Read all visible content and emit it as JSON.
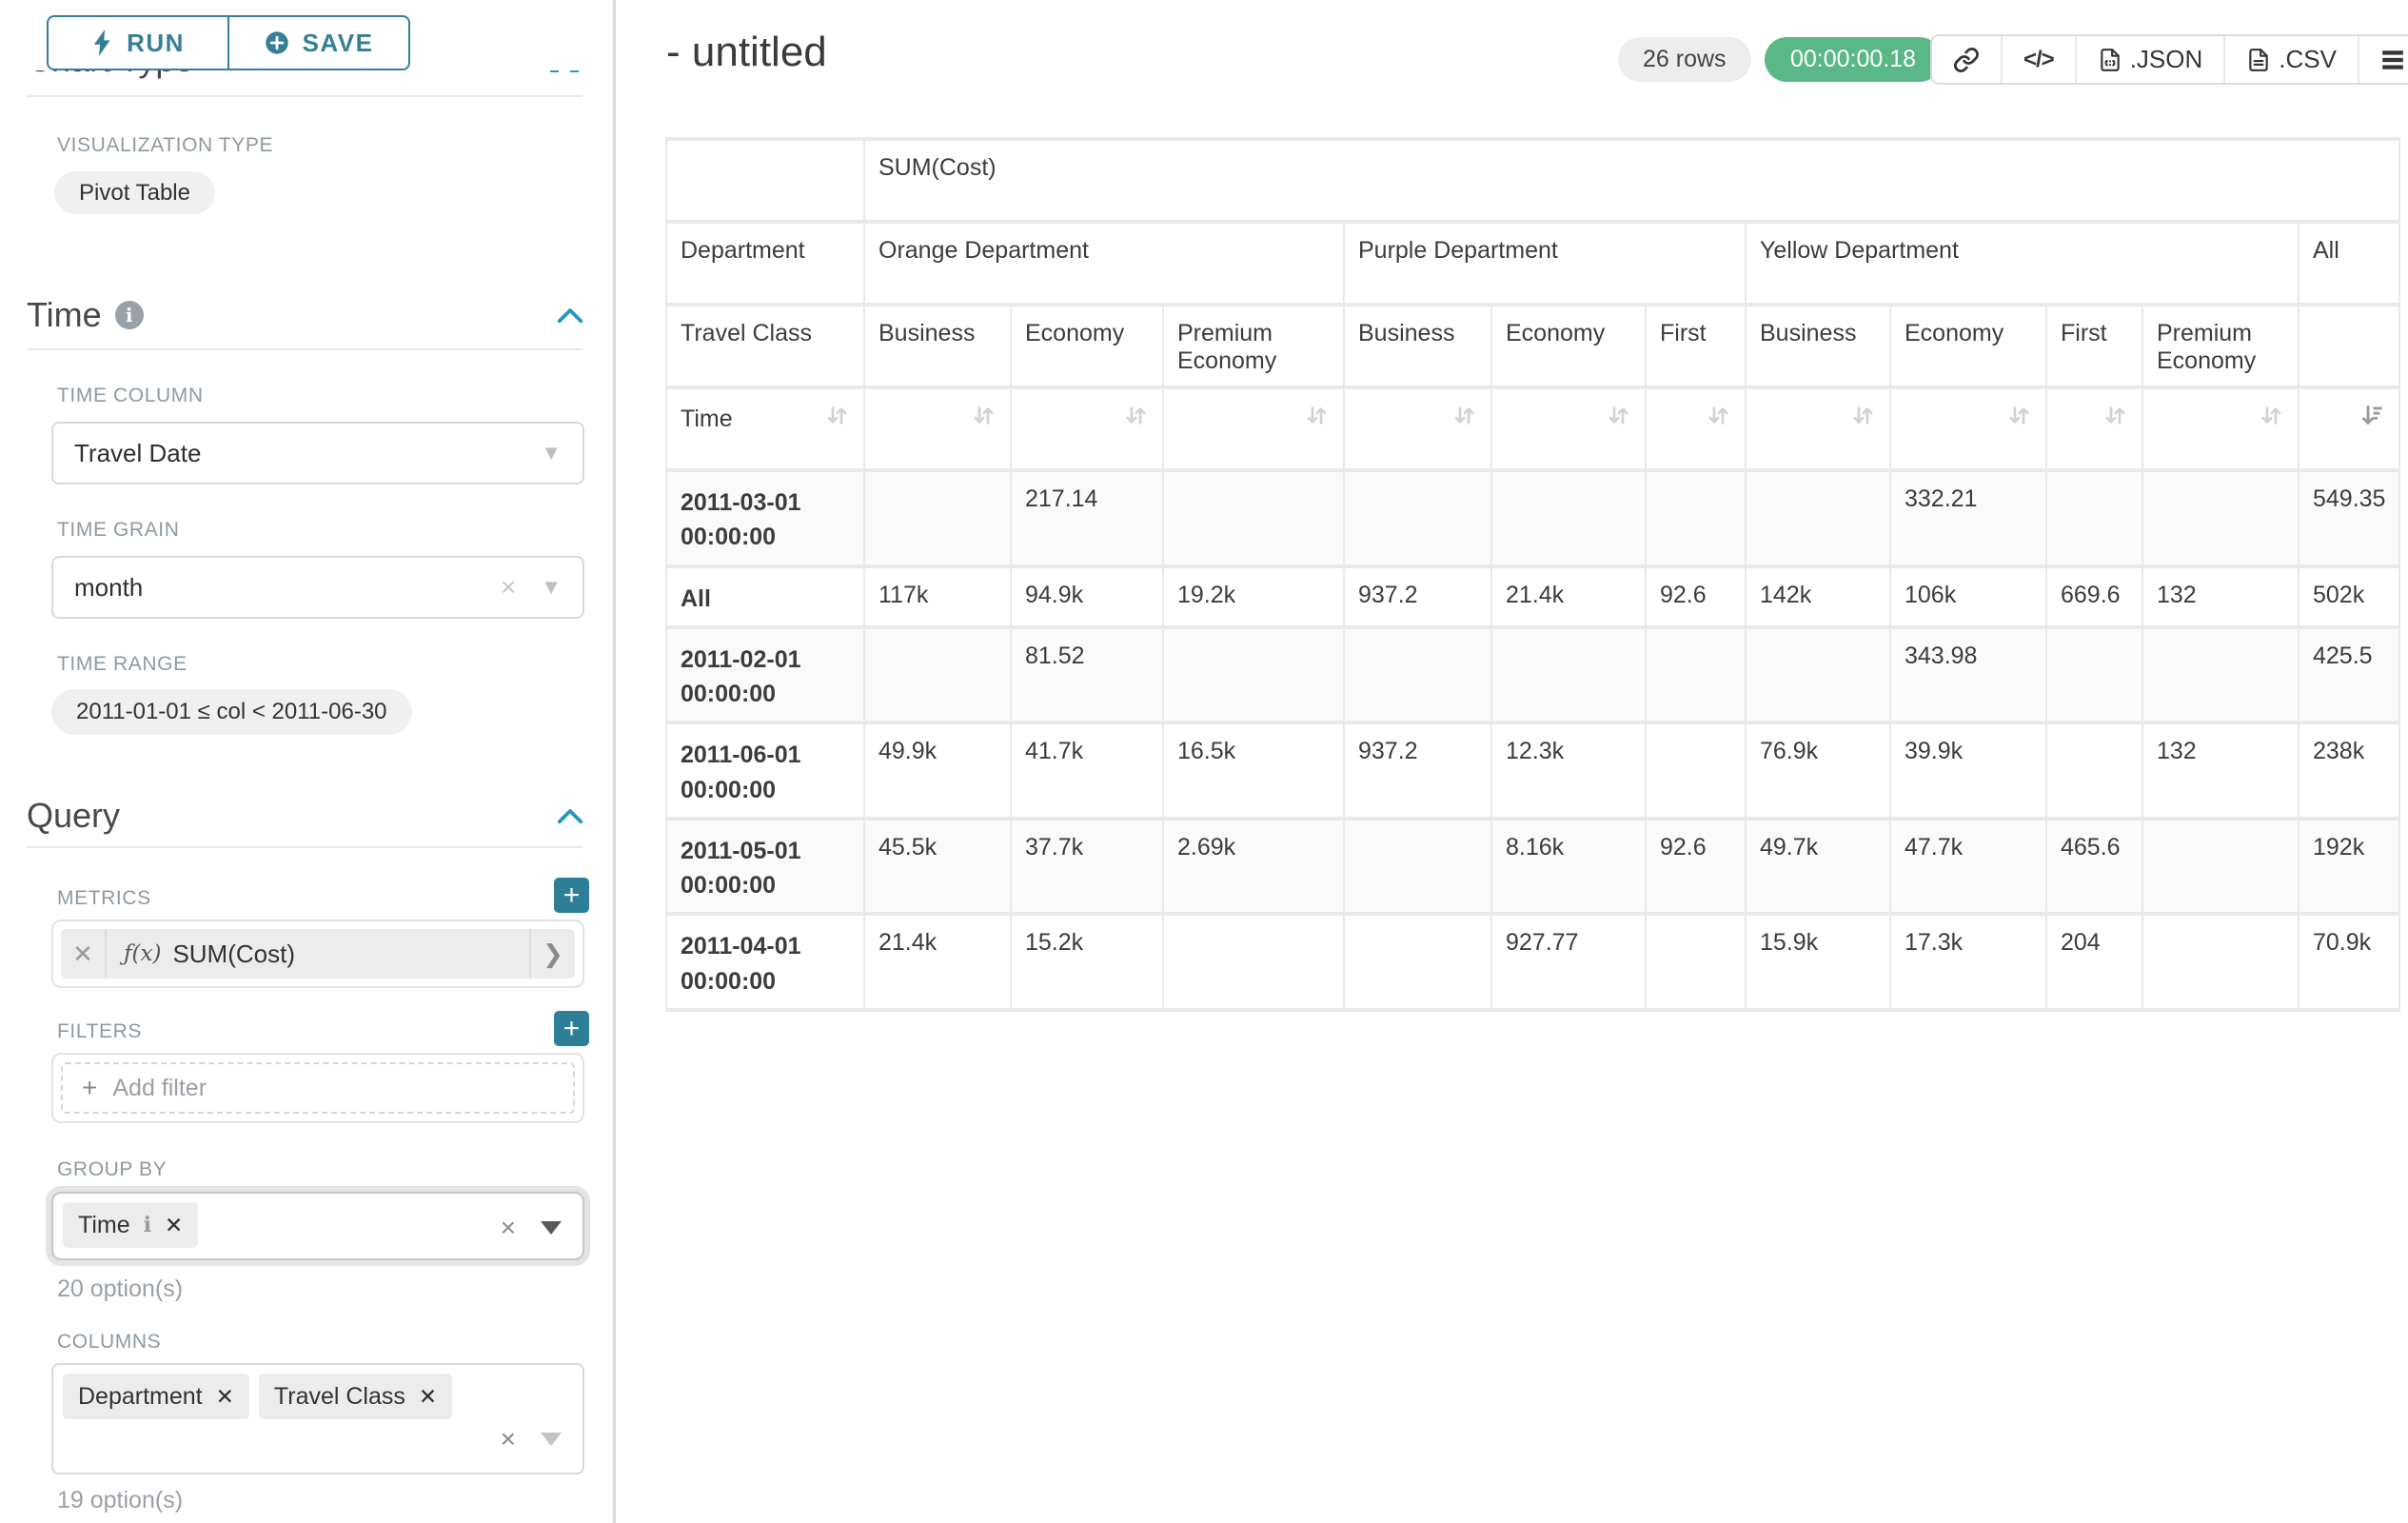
{
  "colors": {
    "accent_teal": "#377e97",
    "caret_blue": "#2595c1",
    "timer_green": "#5ab886",
    "plus_button_teal": "#2d7f98"
  },
  "sidebar": {
    "run_label": "RUN",
    "save_label": "SAVE",
    "chart_type_heading": "Chart Type",
    "viz_type_label": "VISUALIZATION TYPE",
    "viz_type_value": "Pivot Table",
    "time": {
      "title": "Time",
      "time_column_label": "TIME COLUMN",
      "time_column_value": "Travel Date",
      "time_grain_label": "TIME GRAIN",
      "time_grain_value": "month",
      "time_range_label": "TIME RANGE",
      "time_range_value": "2011-01-01 ≤ col < 2011-06-30"
    },
    "query": {
      "title": "Query",
      "metrics_label": "METRICS",
      "metric_fx": "ƒ(x)",
      "metric_value": "SUM(Cost)",
      "filters_label": "FILTERS",
      "add_filter_label": "Add filter",
      "group_by_label": "GROUP BY",
      "group_by_tags": [
        {
          "label": "Time",
          "info": true
        }
      ],
      "group_by_options_note": "20 option(s)",
      "columns_label": "COLUMNS",
      "columns_tags": [
        {
          "label": "Department"
        },
        {
          "label": "Travel Class"
        }
      ],
      "columns_options_note": "19 option(s)"
    }
  },
  "header": {
    "title": "- untitled",
    "rows_badge": "26 rows",
    "timer_badge": "00:00:00.18",
    "json_label": ".JSON",
    "csv_label": ".CSV"
  },
  "pivot": {
    "metric_header": "SUM(Cost)",
    "col_dim_label": "Department",
    "col_dim2_label": "Travel Class",
    "row_dim_label": "Time",
    "groups": [
      {
        "label": "Orange Department",
        "classes": [
          "Business",
          "Economy",
          "Premium Economy"
        ]
      },
      {
        "label": "Purple Department",
        "classes": [
          "Business",
          "Economy",
          "First"
        ]
      },
      {
        "label": "Yellow Department",
        "classes": [
          "Business",
          "Economy",
          "First",
          "Premium Economy"
        ]
      },
      {
        "label": "All",
        "classes": [
          ""
        ]
      }
    ],
    "rows": [
      {
        "label": "2011-03-01 00:00:00",
        "values": [
          "",
          "217.14",
          "",
          "",
          "",
          "",
          "",
          "332.21",
          "",
          "",
          "549.35"
        ]
      },
      {
        "label": "All",
        "values": [
          "117k",
          "94.9k",
          "19.2k",
          "937.2",
          "21.4k",
          "92.6",
          "142k",
          "106k",
          "669.6",
          "132",
          "502k"
        ]
      },
      {
        "label": "2011-02-01 00:00:00",
        "values": [
          "",
          "81.52",
          "",
          "",
          "",
          "",
          "",
          "343.98",
          "",
          "",
          "425.5"
        ]
      },
      {
        "label": "2011-06-01 00:00:00",
        "values": [
          "49.9k",
          "41.7k",
          "16.5k",
          "937.2",
          "12.3k",
          "",
          "76.9k",
          "39.9k",
          "",
          "132",
          "238k"
        ]
      },
      {
        "label": "2011-05-01 00:00:00",
        "values": [
          "45.5k",
          "37.7k",
          "2.69k",
          "",
          "8.16k",
          "92.6",
          "49.7k",
          "47.7k",
          "465.6",
          "",
          "192k"
        ]
      },
      {
        "label": "2011-04-01 00:00:00",
        "values": [
          "21.4k",
          "15.2k",
          "",
          "",
          "927.77",
          "",
          "15.9k",
          "17.3k",
          "204",
          "",
          "70.9k"
        ]
      }
    ],
    "sorted_column_index": 10
  }
}
